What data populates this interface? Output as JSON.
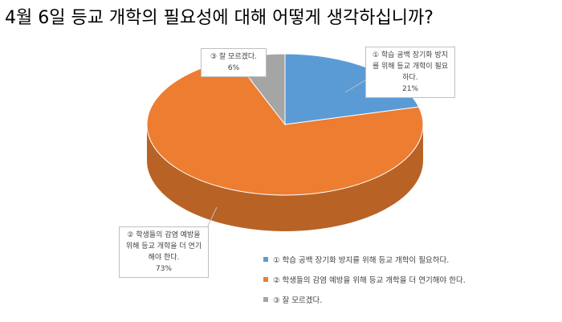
{
  "chart_data": {
    "type": "pie3d",
    "title": "4월 6일 등교 개학의 필요성에 대해 어떻게 생각하십니까?",
    "categories": [
      "① 학습 공백 장기화 방지를 위해 등교 개학이 필요하다.",
      "② 학생들의 감염 예방을 위해 등교 개학을 더 연기해야 한다.",
      "③ 잘 모르겠다."
    ],
    "values": [
      21,
      73,
      6
    ],
    "value_labels": [
      "21%",
      "73%",
      "6%"
    ],
    "colors": [
      "#5b9bd5",
      "#ed7d31",
      "#a5a5a5"
    ],
    "legend": "bottom-right"
  }
}
